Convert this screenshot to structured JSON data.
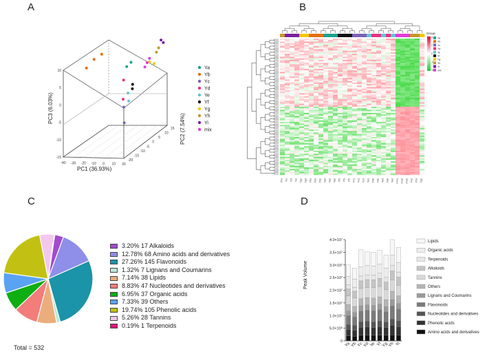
{
  "panels": {
    "a": "A",
    "b": "B",
    "c": "C",
    "d": "D"
  },
  "chart_data": [
    {
      "type": "scatter",
      "panel": "A",
      "title": "",
      "xlabel": "PC1 (36.93%)",
      "ylabel": "PC2 (7.54%)",
      "zlabel": "PC3 (6.03%)",
      "x_ticks": [
        "-40",
        "-30",
        "-20",
        "-10",
        "0",
        "10",
        "20"
      ],
      "y_ticks": [
        "-20",
        "-15",
        "-10",
        "-5",
        "0",
        "5",
        "10",
        "15"
      ],
      "z_ticks": [
        "-15",
        "-10",
        "-5",
        "0",
        "5",
        "10"
      ],
      "legend": [
        "Ya",
        "Yb",
        "Yc",
        "Yd",
        "Ye",
        "Yf",
        "Yg",
        "Yh",
        "Yi",
        "mix"
      ],
      "colors": [
        "#1aa38c",
        "#e46f0a",
        "#7b61b8",
        "#e8327f",
        "#5fc4d9",
        "#111111",
        "#f2c800",
        "#c9952b",
        "#7a1fa2",
        "#e23ad8"
      ],
      "series": [
        {
          "name": "Ya",
          "points": [
            [
              -5,
              5,
              6
            ],
            [
              -8,
              4,
              5
            ]
          ]
        },
        {
          "name": "Yb",
          "points": [
            [
              -35,
              -6,
              7
            ],
            [
              -30,
              -4,
              9
            ],
            [
              -25,
              -2,
              10
            ]
          ]
        },
        {
          "name": "Yc",
          "points": [
            [
              5,
              -8,
              -8
            ],
            [
              2,
              -6,
              -4
            ]
          ]
        },
        {
          "name": "Yd",
          "points": [
            [
              0,
              -5,
              -2
            ],
            [
              -2,
              -3,
              3
            ]
          ]
        },
        {
          "name": "Ye",
          "points": [
            [
              3,
              -3,
              -3
            ],
            [
              1,
              -2,
              -1
            ]
          ]
        },
        {
          "name": "Yf",
          "points": [
            [
              4,
              -1,
              0
            ],
            [
              3,
              0,
              1
            ]
          ]
        },
        {
          "name": "Yg",
          "points": [
            [
              12,
              6,
              6
            ],
            [
              14,
              8,
              5
            ]
          ]
        },
        {
          "name": "Yh",
          "points": [
            [
              15,
              9,
              8
            ],
            [
              16,
              10,
              9
            ]
          ]
        },
        {
          "name": "Yi",
          "points": [
            [
              18,
              12,
              10
            ],
            [
              17,
              11,
              11
            ]
          ]
        },
        {
          "name": "mix",
          "points": [
            [
              10,
              4,
              5
            ],
            [
              11,
              5,
              6
            ],
            [
              12,
              6,
              7
            ]
          ]
        }
      ]
    },
    {
      "type": "heatmap",
      "panel": "B",
      "legend_title": "Group",
      "legend": [
        "Ya",
        "Yb",
        "Yc",
        "Yd",
        "Ye",
        "Yf",
        "Yg",
        "Yh",
        "Yi",
        "mix"
      ],
      "colors": [
        "#1aa38c",
        "#e46f0a",
        "#7b61b8",
        "#e8327f",
        "#5fc4d9",
        "#111111",
        "#f2c800",
        "#c9952b",
        "#7a1fa2",
        "#e23ad8"
      ],
      "scale_labels": [
        "4",
        "2",
        "0",
        "-2",
        "-4"
      ],
      "scale_colors": [
        "#e8002b",
        "#ffffff",
        "#1ccf2a"
      ],
      "sample_labels": [
        "Yh1",
        "Yi1",
        "Yi3",
        "Yi2",
        "Yg1",
        "Yg3",
        "Yb1",
        "Yb3",
        "Yb2",
        "Ya1",
        "Ya3",
        "Ya2",
        "Yf1",
        "Yf3",
        "Yf2",
        "Yc1",
        "Yc3",
        "Yc2",
        "Ye1",
        "Yd3",
        "Yd1",
        "Ye3",
        "Yd2",
        "Ye2",
        "mix1",
        "mix3",
        "mix2",
        "Yh2",
        "Yh3",
        "Yg2"
      ],
      "sample_groups": [
        "Yh",
        "Yi",
        "Yi",
        "Yi",
        "Yg",
        "Yg",
        "Yb",
        "Yb",
        "Yb",
        "Ya",
        "Ya",
        "Ya",
        "Yf",
        "Yf",
        "Yf",
        "Yc",
        "Yc",
        "Yc",
        "Ye",
        "Yd",
        "Yd",
        "Ye",
        "Yd",
        "Ye",
        "mix",
        "mix",
        "mix",
        "Yh",
        "Yh",
        "Yg"
      ]
    },
    {
      "type": "pie",
      "panel": "C",
      "total": "Total = 532",
      "slices": [
        {
          "label": "3.20%  17 Alkaloids",
          "pct": 3.2,
          "color": "#a24bd0"
        },
        {
          "label": "12.78%  68 Amino acids and derivatives",
          "pct": 12.78,
          "color": "#8f8ee8"
        },
        {
          "label": "27.26%  145 Flavonoids",
          "pct": 27.26,
          "color": "#1b93a8"
        },
        {
          "label": "1.32%  7 Lignans and Coumarins",
          "pct": 1.32,
          "color": "#b9ead8"
        },
        {
          "label": "7.14%  38 Lipids",
          "pct": 7.14,
          "color": "#ecad7c"
        },
        {
          "label": "8.83%  47 Nucleotides and derivatives",
          "pct": 8.83,
          "color": "#f27d7a"
        },
        {
          "label": "6.95%  37 Organic acids",
          "pct": 6.95,
          "color": "#0fae13"
        },
        {
          "label": "7.33%  39 Others",
          "pct": 7.33,
          "color": "#5aa3f2"
        },
        {
          "label": "19.74%  105 Phenolic acids",
          "pct": 19.74,
          "color": "#c2c113"
        },
        {
          "label": "5.26%  28 Tannins",
          "pct": 5.26,
          "color": "#f4c8ee"
        },
        {
          "label": "0.19%  1 Terpenoids",
          "pct": 0.19,
          "color": "#e0157b"
        }
      ]
    },
    {
      "type": "bar",
      "panel": "D",
      "stacked": true,
      "ylabel": "Peak Volume",
      "ylim": [
        0,
        40000000
      ],
      "y_ticks": [
        "0",
        "5.0×10⁶",
        "1.0×10⁷",
        "1.5×10⁷",
        "2.0×10⁷",
        "2.5×10⁷",
        "3.0×10⁷",
        "3.5×10⁷",
        "4.0×10⁷"
      ],
      "categories": [
        "Ya",
        "Yb",
        "Yc",
        "Yd",
        "Ye",
        "Yf",
        "Yg",
        "Yh",
        "Yi"
      ],
      "series": [
        {
          "name": "Amino acids and derivatives",
          "color": "#111111",
          "values": [
            2000000,
            1800000,
            2200000,
            2300000,
            2200000,
            2300000,
            2200000,
            2400000,
            2300000
          ]
        },
        {
          "name": "Phenolic acids",
          "color": "#333333",
          "values": [
            2500000,
            2400000,
            3200000,
            3200000,
            3100000,
            3300000,
            3100000,
            3800000,
            3300000
          ]
        },
        {
          "name": "Nucleotides and derivatives",
          "color": "#555555",
          "values": [
            2000000,
            2000000,
            2200000,
            2300000,
            2300000,
            2300000,
            2200000,
            2500000,
            2400000
          ]
        },
        {
          "name": "Flavonoids",
          "color": "#7a7a7a",
          "values": [
            3500000,
            3300000,
            4200000,
            4300000,
            4300000,
            4400000,
            4000000,
            5100000,
            4600000
          ]
        },
        {
          "name": "Lignans and Coumarins",
          "color": "#9a9a9a",
          "values": [
            1800000,
            1700000,
            2100000,
            2100000,
            2100000,
            2200000,
            2000000,
            2500000,
            2200000
          ]
        },
        {
          "name": "Others",
          "color": "#b5b5b5",
          "values": [
            2500000,
            2400000,
            2800000,
            2900000,
            2900000,
            2900000,
            2800000,
            3300000,
            3000000
          ]
        },
        {
          "name": "Tannins",
          "color": "#d9d9d9",
          "values": [
            3500000,
            3400000,
            4000000,
            4000000,
            4100000,
            4100000,
            3900000,
            4500000,
            4200000
          ]
        },
        {
          "name": "Alkaloids",
          "color": "#c4c4c4",
          "values": [
            2700000,
            2600000,
            3000000,
            3100000,
            3100000,
            3200000,
            3000000,
            3500000,
            3200000
          ]
        },
        {
          "name": "Terpenoids",
          "color": "#e6e6e6",
          "values": [
            1700000,
            1600000,
            1900000,
            1900000,
            1900000,
            2000000,
            1900000,
            2200000,
            2000000
          ]
        },
        {
          "name": "Organic acids",
          "color": "#ededed",
          "values": [
            3300000,
            3200000,
            3600000,
            3700000,
            3600000,
            3700000,
            3600000,
            4000000,
            3800000
          ]
        },
        {
          "name": "Lipids",
          "color": "#f7f7f7",
          "values": [
            4500000,
            4400000,
            6800000,
            5400000,
            5400000,
            5400000,
            5200000,
            6200000,
            5900000
          ]
        }
      ]
    }
  ]
}
